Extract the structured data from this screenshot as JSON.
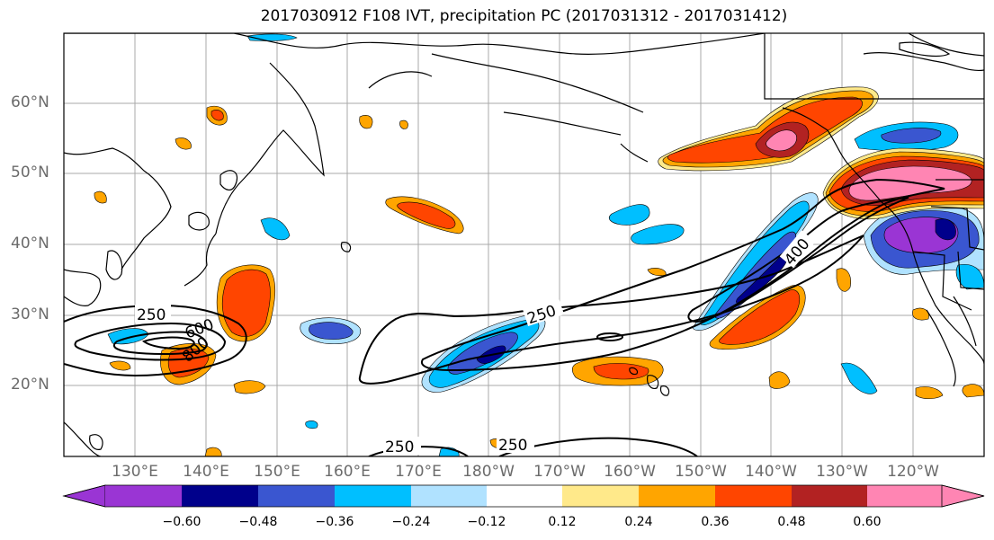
{
  "title": "2017030912 F108 IVT, precipitation PC (2017031312 - 2017031412)",
  "map": {
    "lat_labels": [
      "60°N",
      "50°N",
      "40°N",
      "30°N",
      "20°N"
    ],
    "lon_labels": [
      "130°E",
      "140°E",
      "150°E",
      "160°E",
      "170°E",
      "180°W",
      "170°W",
      "160°W",
      "150°W",
      "140°W",
      "130°W",
      "120°W"
    ],
    "contour_labels": [
      "250",
      "250",
      "400",
      "600",
      "800",
      "250",
      "250"
    ]
  },
  "colorbar": {
    "ticks": [
      "−0.60",
      "−0.48",
      "−0.36",
      "−0.24",
      "−0.12",
      "0.12",
      "0.24",
      "0.36",
      "0.48",
      "0.60"
    ],
    "colors": [
      "#9a35d4",
      "#00008b",
      "#3a56d0",
      "#00bfff",
      "#b0e2ff",
      "#ffffff",
      "#ffe98a",
      "#ffa500",
      "#ff4500",
      "#b22222",
      "#ff85b3"
    ]
  }
}
